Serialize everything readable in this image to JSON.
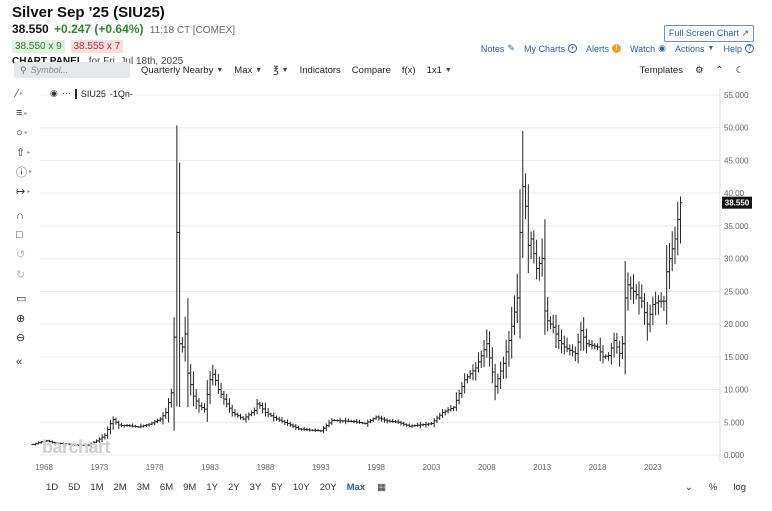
{
  "header": {
    "title": "Silver Sep '25 (SIU25)",
    "last": "38.550",
    "change": "+0.247 (+0.64%)",
    "time": "11:18 CT [COMEX]",
    "bid": "38.550 x 9",
    "ask": "38.555 x 7",
    "panel_label": "CHART PANEL",
    "panel_date": "for Fri, Jul 18th, 2025"
  },
  "top_links": {
    "fullscreen": "Full Screen Chart",
    "notes": "Notes",
    "mycharts": "My Charts",
    "alerts": "Alerts",
    "watch": "Watch",
    "actions": "Actions",
    "help": "Help"
  },
  "toolbar": {
    "symbol_placeholder": "Symbol...",
    "period": "Quarterly Nearby",
    "range": "Max",
    "indicators": "Indicators",
    "compare": "Compare",
    "fx": "f(x)",
    "layout": "1x1",
    "templates": "Templates"
  },
  "legend": {
    "symbol": "SIU25",
    "interval": "-1Qn-"
  },
  "last_price_tag": "38.550",
  "watermark": "barchart",
  "bottom": {
    "periods": [
      "1D",
      "5D",
      "1M",
      "2M",
      "3M",
      "6M",
      "9M",
      "1Y",
      "2Y",
      "3Y",
      "5Y",
      "10Y",
      "20Y",
      "Max"
    ],
    "active": "Max",
    "pct": "%",
    "log": "log"
  },
  "icons": {
    "search": "search-icon",
    "settings": "gear-icon",
    "collapse": "double-chevron-up-icon",
    "theme": "moon-icon",
    "calendar": "calendar-icon",
    "expand": "double-chevron-down-icon"
  },
  "colors": {
    "bars": "#222222",
    "price_tag_bg": "#111111",
    "up": "#2a8a2a",
    "down": "#b43030",
    "link": "#2b5ea7"
  },
  "chart_data": {
    "type": "ohlc",
    "interval": "quarterly",
    "y_axis": {
      "min": 0,
      "max": 55,
      "ticks": [
        "55.000",
        "50.000",
        "45.000",
        "40.00",
        "35.000",
        "30.000",
        "25.000",
        "20.000",
        "15.000",
        "10.000",
        "5.000",
        "0.000"
      ],
      "position": "right"
    },
    "x_axis": {
      "tick_labels": [
        "1968",
        "1973",
        "1978",
        "1983",
        "1988",
        "1993",
        "1998",
        "2003",
        "2008",
        "2013",
        "2018",
        "2023"
      ]
    },
    "grid": true,
    "anchors": [
      [
        1967.0,
        1.6
      ],
      [
        1967.5,
        1.9
      ],
      [
        1968.2,
        2.2
      ],
      [
        1969.0,
        1.8
      ],
      [
        1970.0,
        1.7
      ],
      [
        1971.0,
        1.5
      ],
      [
        1972.0,
        1.5
      ],
      [
        1972.8,
        2.2
      ],
      [
        1973.5,
        3.0
      ],
      [
        1974.2,
        5.5
      ],
      [
        1974.8,
        4.5
      ],
      [
        1975.5,
        4.5
      ],
      [
        1976.5,
        4.3
      ],
      [
        1977.5,
        4.7
      ],
      [
        1978.5,
        5.5
      ],
      [
        1979.0,
        6.5
      ],
      [
        1979.5,
        9.5
      ],
      [
        1979.75,
        18.0
      ],
      [
        1980.0,
        34.0
      ],
      [
        1980.25,
        17.0
      ],
      [
        1980.5,
        16.5
      ],
      [
        1980.75,
        18.5
      ],
      [
        1981.0,
        12.5
      ],
      [
        1981.5,
        9.0
      ],
      [
        1982.0,
        7.5
      ],
      [
        1982.5,
        7.0
      ],
      [
        1983.0,
        11.5
      ],
      [
        1983.3,
        12.5
      ],
      [
        1983.75,
        10.0
      ],
      [
        1984.5,
        7.8
      ],
      [
        1985.0,
        6.5
      ],
      [
        1986.0,
        5.5
      ],
      [
        1987.0,
        6.8
      ],
      [
        1987.3,
        8.0
      ],
      [
        1988.0,
        6.5
      ],
      [
        1989.0,
        5.5
      ],
      [
        1990.0,
        4.8
      ],
      [
        1991.0,
        4.0
      ],
      [
        1992.0,
        3.8
      ],
      [
        1993.0,
        3.7
      ],
      [
        1993.5,
        4.5
      ],
      [
        1994.0,
        5.3
      ],
      [
        1995.0,
        5.2
      ],
      [
        1996.0,
        5.1
      ],
      [
        1997.0,
        4.8
      ],
      [
        1998.0,
        5.8
      ],
      [
        1998.5,
        5.5
      ],
      [
        1999.0,
        5.2
      ],
      [
        2000.0,
        5.0
      ],
      [
        2001.0,
        4.4
      ],
      [
        2002.0,
        4.6
      ],
      [
        2003.0,
        4.8
      ],
      [
        2004.0,
        6.5
      ],
      [
        2005.0,
        7.3
      ],
      [
        2006.0,
        11.5
      ],
      [
        2007.0,
        13.3
      ],
      [
        2008.0,
        17.0
      ],
      [
        2008.75,
        10.5
      ],
      [
        2009.5,
        14.0
      ],
      [
        2010.0,
        17.5
      ],
      [
        2010.75,
        24.0
      ],
      [
        2011.0,
        34.0
      ],
      [
        2011.25,
        41.0
      ],
      [
        2011.5,
        38.0
      ],
      [
        2011.75,
        32.0
      ],
      [
        2012.0,
        33.0
      ],
      [
        2012.5,
        28.5
      ],
      [
        2013.0,
        30.0
      ],
      [
        2013.25,
        22.0
      ],
      [
        2013.5,
        20.5
      ],
      [
        2014.0,
        19.5
      ],
      [
        2014.5,
        17.5
      ],
      [
        2015.0,
        16.5
      ],
      [
        2016.0,
        15.5
      ],
      [
        2016.5,
        19.0
      ],
      [
        2017.0,
        17.0
      ],
      [
        2018.0,
        16.5
      ],
      [
        2018.5,
        15.0
      ],
      [
        2019.0,
        15.2
      ],
      [
        2019.5,
        17.5
      ],
      [
        2020.0,
        15.5
      ],
      [
        2020.25,
        17.0
      ],
      [
        2020.5,
        24.0
      ],
      [
        2020.75,
        26.0
      ],
      [
        2021.0,
        25.5
      ],
      [
        2021.5,
        24.5
      ],
      [
        2022.0,
        23.5
      ],
      [
        2022.5,
        20.0
      ],
      [
        2023.0,
        23.0
      ],
      [
        2023.5,
        23.5
      ],
      [
        2024.0,
        23.5
      ],
      [
        2024.25,
        28.0
      ],
      [
        2024.5,
        30.0
      ],
      [
        2024.75,
        31.5
      ],
      [
        2025.0,
        33.0
      ],
      [
        2025.25,
        36.0
      ],
      [
        2025.5,
        38.55
      ]
    ],
    "peaks": [
      [
        1980.0,
        50.35
      ],
      [
        2011.25,
        49.5
      ],
      [
        2025.5,
        39.5
      ]
    ],
    "last_price": 38.55
  }
}
